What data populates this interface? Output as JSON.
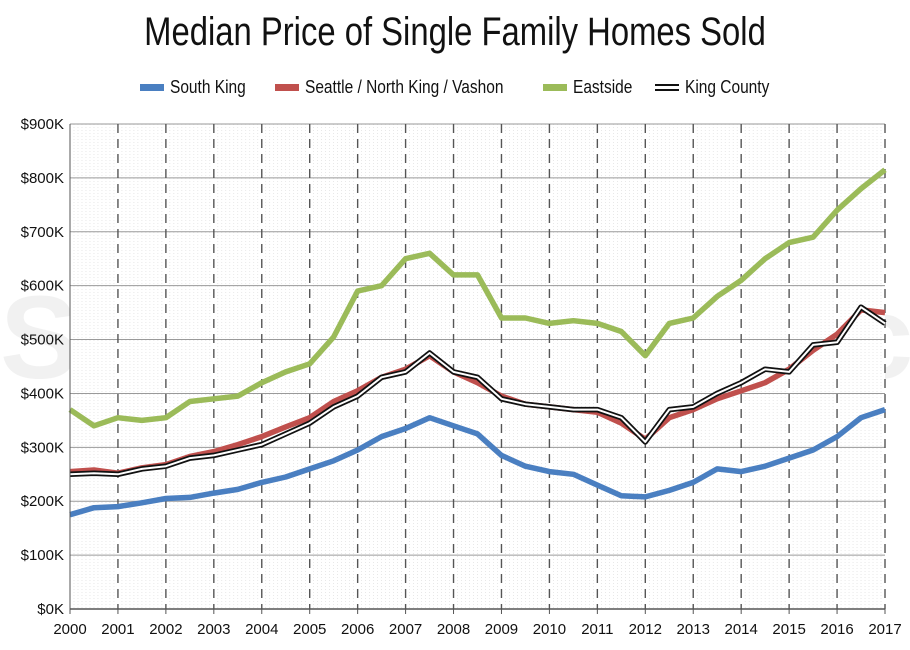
{
  "watermark": "SeattleBubble.com",
  "chart_data": {
    "type": "line",
    "title": "Median Price of Single Family Homes Sold",
    "xlabel": "",
    "ylabel": "",
    "ylim": [
      0,
      900000
    ],
    "xlim": [
      2000,
      2017
    ],
    "grid": true,
    "legend_position": "top",
    "y_ticks": [
      "$0K",
      "$100K",
      "$200K",
      "$300K",
      "$400K",
      "$500K",
      "$600K",
      "$700K",
      "$800K",
      "$900K"
    ],
    "x_ticks": [
      "2000",
      "2001",
      "2002",
      "2003",
      "2004",
      "2005",
      "2006",
      "2007",
      "2008",
      "2009",
      "2010",
      "2011",
      "2012",
      "2013",
      "2014",
      "2015",
      "2016",
      "2017"
    ],
    "series": [
      {
        "name": "South King",
        "color": "#4a7fc1",
        "x": [
          2000.0,
          2000.5,
          2001.0,
          2001.5,
          2002.0,
          2002.5,
          2003.0,
          2003.5,
          2004.0,
          2004.5,
          2005.0,
          2005.5,
          2006.0,
          2006.5,
          2007.0,
          2007.5,
          2008.0,
          2008.5,
          2009.0,
          2009.5,
          2010.0,
          2010.5,
          2011.0,
          2011.5,
          2012.0,
          2012.5,
          2013.0,
          2013.5,
          2014.0,
          2014.5,
          2015.0,
          2015.5,
          2016.0,
          2016.5,
          2017.0
        ],
        "values": [
          175000,
          188000,
          190000,
          197000,
          205000,
          207000,
          215000,
          222000,
          235000,
          245000,
          260000,
          275000,
          295000,
          320000,
          335000,
          355000,
          340000,
          325000,
          285000,
          265000,
          255000,
          250000,
          230000,
          210000,
          208000,
          220000,
          235000,
          260000,
          255000,
          265000,
          280000,
          295000,
          320000,
          355000,
          370000
        ]
      },
      {
        "name": "Seattle / North King / Vashon",
        "color": "#c0504d",
        "x": [
          2000.0,
          2000.5,
          2001.0,
          2001.5,
          2002.0,
          2002.5,
          2003.0,
          2003.5,
          2004.0,
          2004.5,
          2005.0,
          2005.5,
          2006.0,
          2006.5,
          2007.0,
          2007.5,
          2008.0,
          2008.5,
          2009.0,
          2009.5,
          2010.0,
          2010.5,
          2011.0,
          2011.5,
          2012.0,
          2012.5,
          2013.0,
          2013.5,
          2014.0,
          2014.5,
          2015.0,
          2015.5,
          2016.0,
          2016.5,
          2017.0
        ],
        "values": [
          255000,
          258000,
          252000,
          262000,
          268000,
          283000,
          292000,
          305000,
          320000,
          338000,
          355000,
          385000,
          405000,
          430000,
          445000,
          470000,
          440000,
          420000,
          395000,
          380000,
          375000,
          370000,
          365000,
          345000,
          315000,
          355000,
          370000,
          390000,
          405000,
          420000,
          445000,
          480000,
          510000,
          555000,
          550000
        ]
      },
      {
        "name": "Eastside",
        "color": "#9bbb59",
        "x": [
          2000.0,
          2000.5,
          2001.0,
          2001.5,
          2002.0,
          2002.5,
          2003.0,
          2003.5,
          2004.0,
          2004.5,
          2005.0,
          2005.5,
          2006.0,
          2006.5,
          2007.0,
          2007.5,
          2008.0,
          2008.5,
          2009.0,
          2009.5,
          2010.0,
          2010.5,
          2011.0,
          2011.5,
          2012.0,
          2012.5,
          2013.0,
          2013.5,
          2014.0,
          2014.5,
          2015.0,
          2015.5,
          2016.0,
          2016.5,
          2017.0
        ],
        "values": [
          370000,
          340000,
          355000,
          350000,
          355000,
          385000,
          390000,
          395000,
          420000,
          440000,
          455000,
          505000,
          590000,
          600000,
          650000,
          660000,
          620000,
          620000,
          540000,
          540000,
          530000,
          535000,
          530000,
          515000,
          470000,
          530000,
          540000,
          580000,
          610000,
          650000,
          680000,
          690000,
          740000,
          780000,
          815000
        ]
      },
      {
        "name": "King County",
        "color": "#111111",
        "x": [
          2000.0,
          2000.5,
          2001.0,
          2001.5,
          2002.0,
          2002.5,
          2003.0,
          2003.5,
          2004.0,
          2004.5,
          2005.0,
          2005.5,
          2006.0,
          2006.5,
          2007.0,
          2007.5,
          2008.0,
          2008.5,
          2009.0,
          2009.5,
          2010.0,
          2010.5,
          2011.0,
          2011.5,
          2012.0,
          2012.5,
          2013.0,
          2013.5,
          2014.0,
          2014.5,
          2015.0,
          2015.5,
          2016.0,
          2016.5,
          2017.0
        ],
        "values": [
          250000,
          252000,
          250000,
          260000,
          265000,
          280000,
          285000,
          295000,
          305000,
          325000,
          345000,
          375000,
          395000,
          430000,
          440000,
          475000,
          440000,
          430000,
          390000,
          380000,
          375000,
          370000,
          370000,
          355000,
          310000,
          370000,
          375000,
          400000,
          420000,
          445000,
          440000,
          490000,
          495000,
          560000,
          530000
        ]
      }
    ]
  }
}
